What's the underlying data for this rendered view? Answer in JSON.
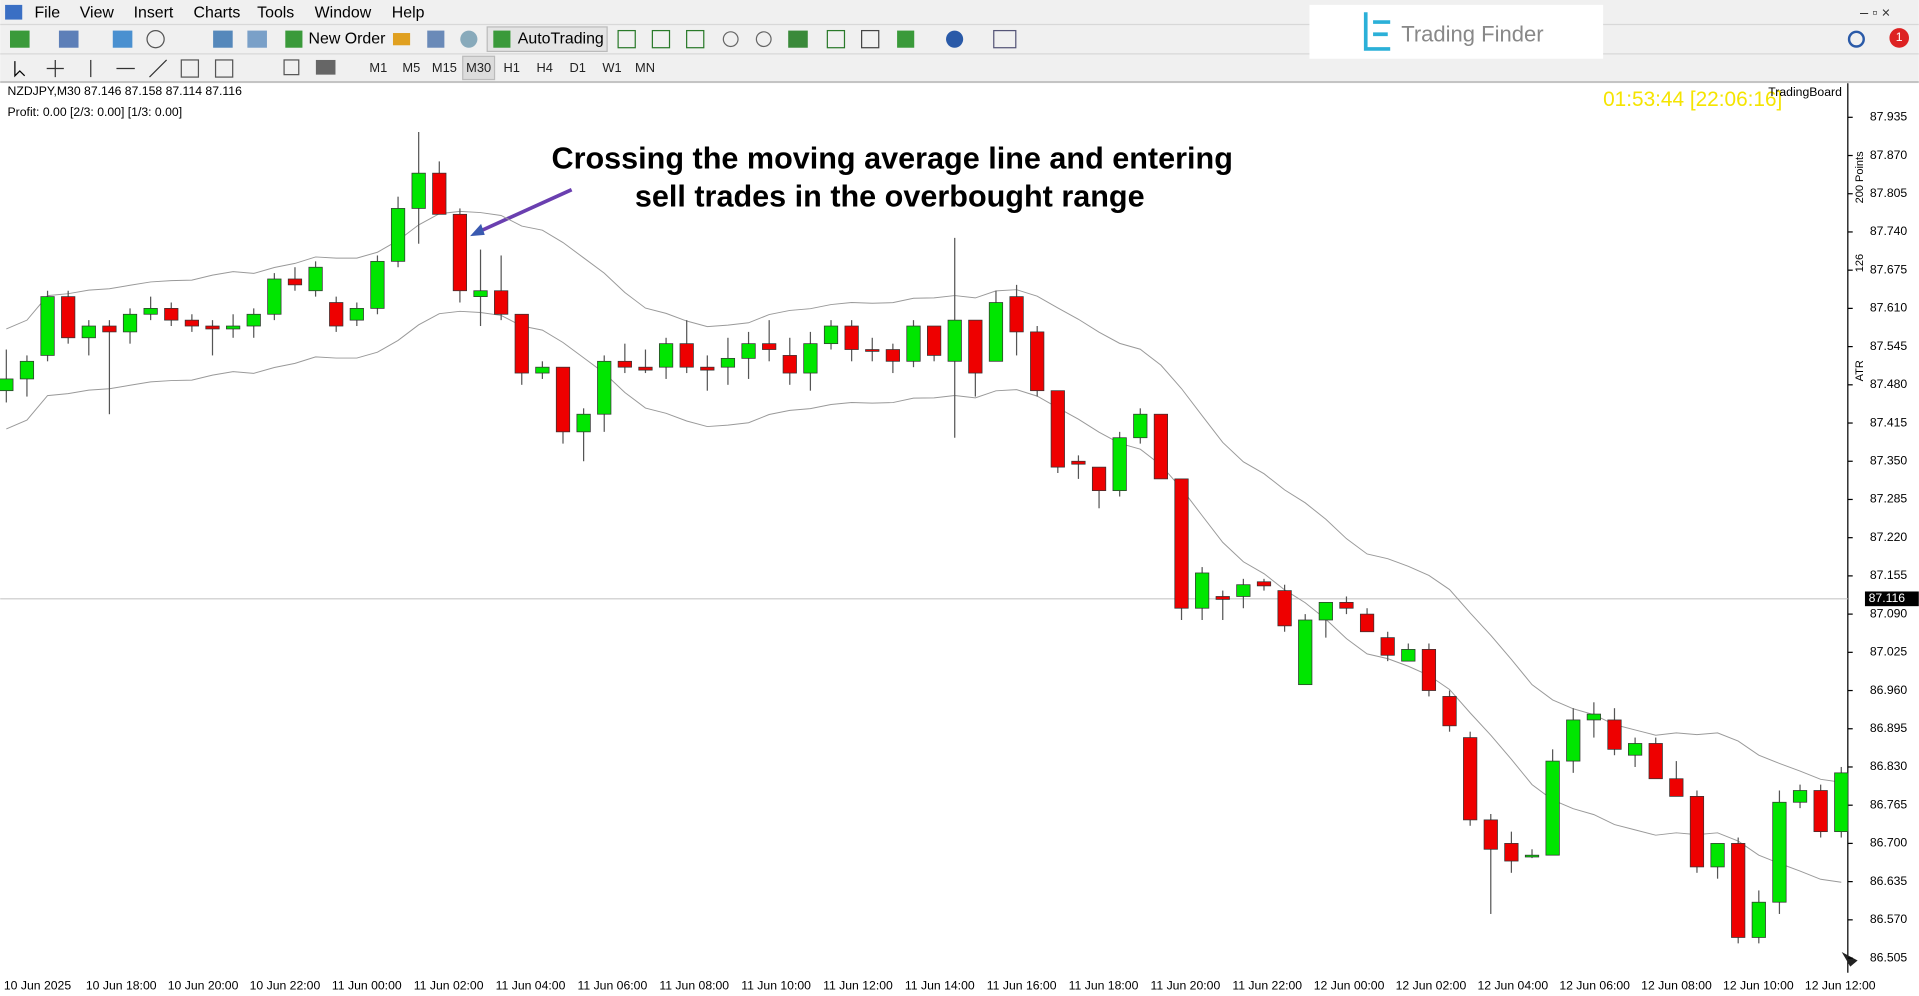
{
  "menu": [
    "File",
    "View",
    "Insert",
    "Charts",
    "Tools",
    "Window",
    "Help"
  ],
  "toolbar": {
    "new_order": "New Order",
    "autotrading": "AutoTrading",
    "timeframes": [
      "M1",
      "M5",
      "M15",
      "M30",
      "H1",
      "H4",
      "D1",
      "W1",
      "MN"
    ]
  },
  "logo": "Trading Finder",
  "notifications": "1",
  "chart": {
    "header": "NZDJPY,M30  87.146 87.158 87.114 87.116",
    "profit": "Profit:         0.00    [2/3:  0.00]    [1/3:  0.00]",
    "timer": "01:53:44 [22:06:16]",
    "panel_title": "TradingBoard",
    "side_labels": [
      "200 Points",
      "126",
      "ATR"
    ],
    "annotation": [
      "Crossing the moving average line and entering",
      "sell trades in the overbought range"
    ],
    "ylim": [
      86.48,
      87.993
    ],
    "yticks": [
      87.935,
      {
        "value": 87.87,
        "label": "87.870"
      },
      87.805,
      {
        "value": 87.74,
        "label": "87.740"
      },
      87.675,
      {
        "value": 87.61,
        "label": "87.610"
      },
      87.545,
      {
        "value": 87.48,
        "label": "87.480"
      },
      87.415,
      {
        "value": 87.35,
        "label": "87.350"
      },
      87.285,
      {
        "value": 87.22,
        "label": "87.220"
      },
      87.155,
      {
        "value": 87.09,
        "label": "87.090"
      },
      87.025,
      {
        "value": 86.96,
        "label": "86.960"
      },
      86.895,
      {
        "value": 86.83,
        "label": "86.830"
      },
      86.765,
      {
        "value": 86.7,
        "label": "86.700"
      },
      86.635,
      {
        "value": 86.57,
        "label": "86.570"
      },
      86.505
    ],
    "current_price": 87.116,
    "time_labels": [
      "10 Jun 2025",
      "10 Jun 18:00",
      "10 Jun 20:00",
      "10 Jun 22:00",
      "11 Jun 00:00",
      "11 Jun 02:00",
      "11 Jun 04:00",
      "11 Jun 06:00",
      "11 Jun 08:00",
      "11 Jun 10:00",
      "11 Jun 12:00",
      "11 Jun 14:00",
      "11 Jun 16:00",
      "11 Jun 18:00",
      "11 Jun 20:00",
      "11 Jun 22:00",
      "12 Jun 00:00",
      "12 Jun 02:00",
      "12 Jun 04:00",
      "12 Jun 06:00",
      "12 Jun 08:00",
      "12 Jun 10:00",
      "12 Jun 12:00"
    ],
    "candles": [
      [
        87.47,
        87.54,
        87.45,
        87.49
      ],
      [
        87.49,
        87.53,
        87.46,
        87.52
      ],
      [
        87.53,
        87.64,
        87.52,
        87.63
      ],
      [
        87.63,
        87.64,
        87.55,
        87.56
      ],
      [
        87.56,
        87.59,
        87.53,
        87.58
      ],
      [
        87.58,
        87.59,
        87.43,
        87.57
      ],
      [
        87.57,
        87.61,
        87.55,
        87.6
      ],
      [
        87.6,
        87.63,
        87.59,
        87.61
      ],
      [
        87.61,
        87.62,
        87.58,
        87.59
      ],
      [
        87.59,
        87.6,
        87.57,
        87.58
      ],
      [
        87.58,
        87.59,
        87.53,
        87.575
      ],
      [
        87.575,
        87.6,
        87.56,
        87.58
      ],
      [
        87.58,
        87.61,
        87.56,
        87.6
      ],
      [
        87.6,
        87.67,
        87.59,
        87.66
      ],
      [
        87.66,
        87.68,
        87.64,
        87.65
      ],
      [
        87.64,
        87.69,
        87.63,
        87.68
      ],
      [
        87.62,
        87.63,
        87.57,
        87.58
      ],
      [
        87.59,
        87.62,
        87.58,
        87.61
      ],
      [
        87.61,
        87.7,
        87.6,
        87.69
      ],
      [
        87.69,
        87.8,
        87.68,
        87.78
      ],
      [
        87.78,
        87.91,
        87.72,
        87.84
      ],
      [
        87.84,
        87.86,
        87.77,
        87.77
      ],
      [
        87.77,
        87.78,
        87.62,
        87.64
      ],
      [
        87.63,
        87.71,
        87.58,
        87.64
      ],
      [
        87.64,
        87.7,
        87.59,
        87.6
      ],
      [
        87.6,
        87.6,
        87.48,
        87.5
      ],
      [
        87.5,
        87.52,
        87.49,
        87.51
      ],
      [
        87.51,
        87.51,
        87.38,
        87.4
      ],
      [
        87.4,
        87.44,
        87.35,
        87.43
      ],
      [
        87.43,
        87.53,
        87.4,
        87.52
      ],
      [
        87.52,
        87.55,
        87.5,
        87.51
      ],
      [
        87.51,
        87.54,
        87.5,
        87.505
      ],
      [
        87.51,
        87.56,
        87.49,
        87.55
      ],
      [
        87.55,
        87.59,
        87.5,
        87.51
      ],
      [
        87.51,
        87.53,
        87.47,
        87.505
      ],
      [
        87.51,
        87.56,
        87.48,
        87.525
      ],
      [
        87.525,
        87.57,
        87.49,
        87.55
      ],
      [
        87.55,
        87.59,
        87.52,
        87.54
      ],
      [
        87.53,
        87.56,
        87.48,
        87.5
      ],
      [
        87.5,
        87.57,
        87.47,
        87.55
      ],
      [
        87.55,
        87.59,
        87.54,
        87.58
      ],
      [
        87.58,
        87.59,
        87.52,
        87.54
      ],
      [
        87.54,
        87.56,
        87.52,
        87.538
      ],
      [
        87.54,
        87.55,
        87.5,
        87.52
      ],
      [
        87.52,
        87.59,
        87.51,
        87.58
      ],
      [
        87.58,
        87.58,
        87.52,
        87.53
      ],
      [
        87.52,
        87.73,
        87.39,
        87.59
      ],
      [
        87.59,
        87.59,
        87.46,
        87.5
      ],
      [
        87.52,
        87.64,
        87.52,
        87.62
      ],
      [
        87.63,
        87.65,
        87.53,
        87.57
      ],
      [
        87.57,
        87.58,
        87.46,
        87.47
      ],
      [
        87.47,
        87.47,
        87.33,
        87.34
      ],
      [
        87.35,
        87.36,
        87.32,
        87.345
      ],
      [
        87.34,
        87.34,
        87.27,
        87.3
      ],
      [
        87.3,
        87.4,
        87.29,
        87.39
      ],
      [
        87.39,
        87.44,
        87.38,
        87.43
      ],
      [
        87.43,
        87.43,
        87.32,
        87.32
      ],
      [
        87.32,
        87.32,
        87.08,
        87.1
      ],
      [
        87.1,
        87.17,
        87.08,
        87.16
      ],
      [
        87.12,
        87.13,
        87.08,
        87.115
      ],
      [
        87.12,
        87.15,
        87.1,
        87.14
      ],
      [
        87.145,
        87.15,
        87.13,
        87.138
      ],
      [
        87.13,
        87.14,
        87.06,
        87.07
      ],
      [
        86.97,
        87.09,
        86.97,
        87.08
      ],
      [
        87.08,
        87.11,
        87.05,
        87.11
      ],
      [
        87.11,
        87.12,
        87.09,
        87.1
      ],
      [
        87.09,
        87.1,
        87.06,
        87.06
      ],
      [
        87.05,
        87.06,
        87.01,
        87.02
      ],
      [
        87.01,
        87.04,
        87.01,
        87.03
      ],
      [
        87.03,
        87.04,
        86.95,
        86.96
      ],
      [
        86.95,
        86.96,
        86.89,
        86.9
      ],
      [
        86.88,
        86.89,
        86.73,
        86.74
      ],
      [
        86.74,
        86.75,
        86.58,
        86.69
      ],
      [
        86.7,
        86.72,
        86.65,
        86.67
      ],
      [
        86.68,
        86.69,
        86.675,
        86.68
      ],
      [
        86.68,
        86.86,
        86.68,
        86.84
      ],
      [
        86.84,
        86.93,
        86.82,
        86.91
      ],
      [
        86.91,
        86.94,
        86.88,
        86.92
      ],
      [
        86.91,
        86.93,
        86.85,
        86.86
      ],
      [
        86.85,
        86.88,
        86.83,
        86.87
      ],
      [
        86.87,
        86.88,
        86.81,
        86.81
      ],
      [
        86.81,
        86.84,
        86.78,
        86.78
      ],
      [
        86.78,
        86.79,
        86.65,
        86.66
      ],
      [
        86.66,
        86.7,
        86.64,
        86.7
      ],
      [
        86.7,
        86.71,
        86.53,
        86.54
      ],
      [
        86.54,
        86.62,
        86.53,
        86.6
      ],
      [
        86.6,
        86.79,
        86.58,
        86.77
      ],
      [
        86.77,
        86.8,
        86.76,
        86.79
      ],
      [
        86.79,
        86.8,
        86.71,
        86.72
      ],
      [
        86.72,
        86.83,
        86.71,
        86.82
      ]
    ]
  }
}
